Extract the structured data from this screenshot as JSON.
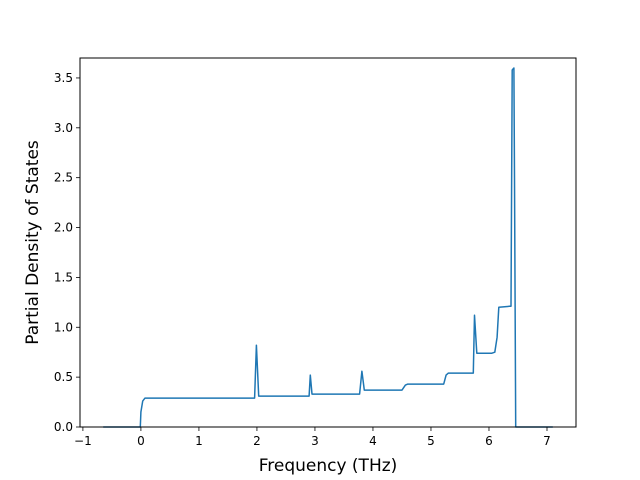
{
  "chart_data": {
    "type": "line",
    "title": "",
    "xlabel": "Frequency (THz)",
    "ylabel": "Partial Density of States",
    "xlim": [
      -1.05,
      7.5
    ],
    "ylim": [
      0.0,
      3.7
    ],
    "xticks": [
      -1,
      0,
      1,
      2,
      3,
      4,
      5,
      6,
      7
    ],
    "xtick_labels": [
      "−1",
      "0",
      "1",
      "2",
      "3",
      "4",
      "5",
      "6",
      "7"
    ],
    "yticks": [
      0.0,
      0.5,
      1.0,
      1.5,
      2.0,
      2.5,
      3.0,
      3.5
    ],
    "ytick_labels": [
      "0.0",
      "0.5",
      "1.0",
      "1.5",
      "2.0",
      "2.5",
      "3.0",
      "3.5"
    ],
    "grid": false,
    "legend": "none",
    "series": [
      {
        "color": "#1f77b4",
        "x": [
          -0.65,
          -0.01,
          0.0,
          0.03,
          0.07,
          0.15,
          0.5,
          1.0,
          1.5,
          1.96,
          1.99,
          2.03,
          2.5,
          2.9,
          2.92,
          2.95,
          3.4,
          3.77,
          3.81,
          3.85,
          4.2,
          4.5,
          4.56,
          4.6,
          5.0,
          5.22,
          5.26,
          5.3,
          5.5,
          5.73,
          5.75,
          5.79,
          6.05,
          6.1,
          6.14,
          6.17,
          6.35,
          6.38,
          6.4,
          6.43,
          6.44,
          6.46,
          7.1
        ],
        "y": [
          0.0,
          0.0,
          0.15,
          0.26,
          0.29,
          0.29,
          0.29,
          0.29,
          0.29,
          0.29,
          0.82,
          0.31,
          0.31,
          0.31,
          0.52,
          0.33,
          0.33,
          0.33,
          0.56,
          0.37,
          0.37,
          0.37,
          0.42,
          0.43,
          0.43,
          0.43,
          0.52,
          0.54,
          0.54,
          0.54,
          1.12,
          0.74,
          0.74,
          0.75,
          0.9,
          1.2,
          1.21,
          1.21,
          3.58,
          3.6,
          2.5,
          0.0,
          0.0
        ]
      }
    ]
  }
}
